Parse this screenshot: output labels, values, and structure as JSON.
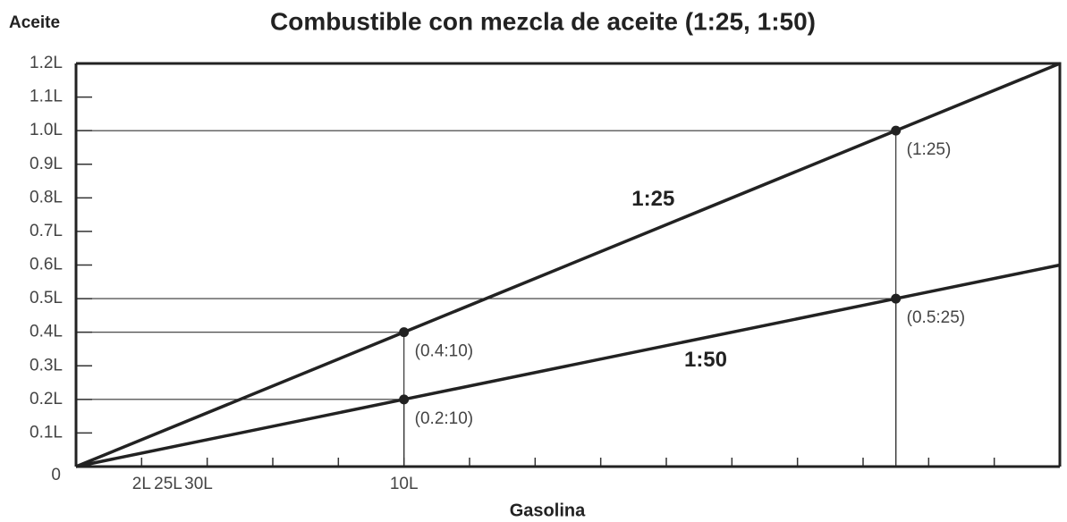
{
  "chart_data": {
    "type": "line",
    "title": "Combustible con mezcla de aceite (1:25, 1:50)",
    "y_label": "Aceite",
    "x_label": "Gasolina",
    "x": [
      0,
      10,
      25,
      30
    ],
    "series": [
      {
        "name": "1:25",
        "color": "#222222",
        "values": [
          0,
          0.4,
          1.0,
          1.2
        ],
        "value_labels": [
          null,
          "(0.4:10)",
          "(1:25)",
          null
        ]
      },
      {
        "name": "1:50",
        "color": "#222222",
        "values": [
          0,
          0.2,
          0.5,
          0.6
        ],
        "value_labels": [
          null,
          "(0.2:10)",
          "(0.5:25)",
          null
        ]
      }
    ],
    "xlim": [
      0,
      30
    ],
    "ylim": [
      0,
      1.2
    ],
    "yticks": [
      0,
      {
        "value": 0.1,
        "label": "0.1L"
      },
      {
        "value": 0.2,
        "label": "0.2L"
      },
      {
        "value": 0.3,
        "label": "0.3L"
      },
      {
        "value": 0.4,
        "label": "0.4L"
      },
      {
        "value": 0.5,
        "label": "0.5L"
      },
      {
        "value": 0.6,
        "label": "0.6L"
      },
      {
        "value": 0.7,
        "label": "0.7L"
      },
      {
        "value": 0.8,
        "label": "0.8L"
      },
      {
        "value": 0.9,
        "label": "0.9L"
      },
      {
        "value": 1,
        "label": "1.0L"
      },
      {
        "value": 1.1,
        "label": "1.1L"
      },
      {
        "value": 1.2,
        "label": "1.2L"
      }
    ],
    "xticks": [
      {
        "value": 2,
        "label": "2L"
      },
      {
        "value": 10,
        "label": "10L"
      }
    ],
    "x_minor_ticks": [
      4,
      6,
      8,
      12,
      14,
      16,
      18,
      20,
      22,
      24,
      26,
      28
    ],
    "extra_x_labels": [
      "25L",
      "30L"
    ]
  }
}
